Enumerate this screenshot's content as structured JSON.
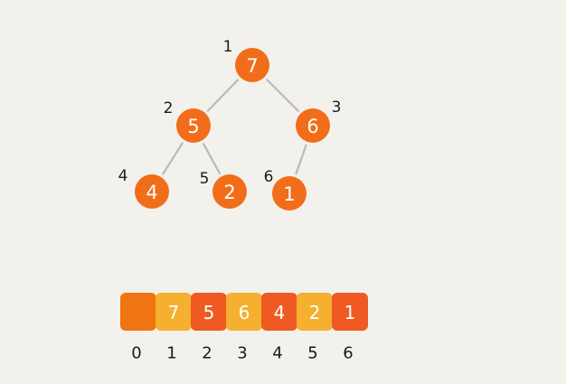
{
  "colors": {
    "background": "#f3f1ec",
    "node_fill": "#f26d1a",
    "node_text": "#ffffff",
    "edge": "#b9b9b9",
    "index_text": "#1a1a1a",
    "cell_dark": "#f07412",
    "cell_light": "#f4b02e",
    "cell_red": "#ef5a22",
    "cell_text": "#ffffff"
  },
  "tree": {
    "nodes": [
      {
        "id": 1,
        "value": "7",
        "label": "1"
      },
      {
        "id": 2,
        "value": "5",
        "label": "2"
      },
      {
        "id": 3,
        "value": "6",
        "label": "3"
      },
      {
        "id": 4,
        "value": "4",
        "label": "4"
      },
      {
        "id": 5,
        "value": "2",
        "label": "5"
      },
      {
        "id": 6,
        "value": "1",
        "label": "6"
      }
    ],
    "edges": [
      [
        1,
        2
      ],
      [
        1,
        3
      ],
      [
        2,
        4
      ],
      [
        2,
        5
      ],
      [
        3,
        6
      ]
    ]
  },
  "array": {
    "cells": [
      {
        "value": "",
        "style": "dark",
        "index": "0"
      },
      {
        "value": "7",
        "style": "light",
        "index": "1"
      },
      {
        "value": "5",
        "style": "red",
        "index": "2"
      },
      {
        "value": "6",
        "style": "light",
        "index": "3"
      },
      {
        "value": "4",
        "style": "red",
        "index": "4"
      },
      {
        "value": "2",
        "style": "light",
        "index": "5"
      },
      {
        "value": "1",
        "style": "red",
        "index": "6"
      }
    ]
  }
}
